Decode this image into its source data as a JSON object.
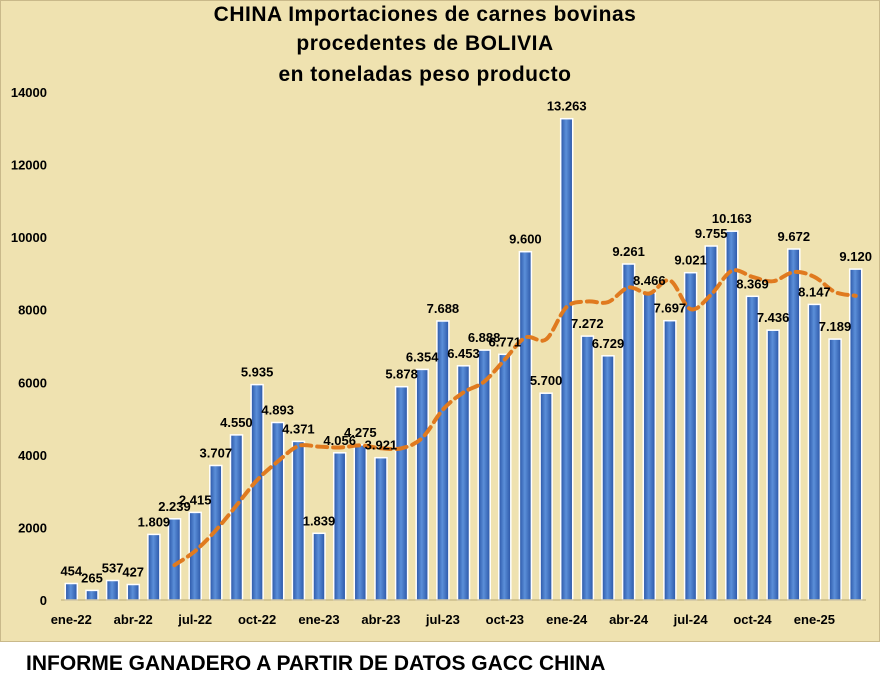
{
  "footer": "INFORME GANADERO A PARTIR DE DATOS GACC CHINA",
  "chart_data": {
    "type": "bar",
    "title_lines": [
      "CHINA Importaciones de carnes bovinas",
      "procedentes de BOLIVIA",
      "en toneladas peso producto"
    ],
    "months": [
      "ene-22",
      "feb-22",
      "mar-22",
      "abr-22",
      "may-22",
      "jun-22",
      "jul-22",
      "ago-22",
      "sep-22",
      "oct-22",
      "nov-22",
      "dic-22",
      "ene-23",
      "feb-23",
      "mar-23",
      "abr-23",
      "may-23",
      "jun-23",
      "jul-23",
      "ago-23",
      "sep-23",
      "oct-23",
      "nov-23",
      "dic-23",
      "ene-24",
      "feb-24",
      "mar-24",
      "abr-24",
      "may-24",
      "jun-24",
      "jul-24",
      "ago-24",
      "sep-24",
      "oct-24",
      "nov-24",
      "dic-24",
      "ene-25",
      "feb-25",
      "mar-25"
    ],
    "x_tick_labels": [
      "ene-22",
      "abr-22",
      "jul-22",
      "oct-22",
      "ene-23",
      "abr-23",
      "jul-23",
      "oct-23",
      "ene-24",
      "abr-24",
      "jul-24",
      "oct-24",
      "ene-25"
    ],
    "values": [
      454,
      265,
      537,
      427,
      1809,
      2239,
      2415,
      3707,
      4550,
      5935,
      4893,
      4371,
      1839,
      4056,
      4275,
      3921,
      5878,
      6354,
      7688,
      6453,
      6888,
      6771,
      9600,
      5700,
      13263,
      7272,
      6729,
      9261,
      8466,
      7697,
      9021,
      9755,
      10163,
      8369,
      7436,
      9672,
      8147,
      7189,
      9120
    ],
    "labels": [
      "454",
      "265",
      "537",
      "427",
      "1.809",
      "2.239",
      "2.415",
      "3.707",
      "4.550",
      "5.935",
      "4.893",
      "4.371",
      "1.839",
      "4.056",
      "4.275",
      "3.921",
      "5.878",
      "6.354",
      "7.688",
      "6.453",
      "6.888",
      "6.771",
      "9.600",
      "5.700",
      "13.263",
      "7.272",
      "6.729",
      "9.261",
      "8.466",
      "7.697",
      "9.021",
      "9.755",
      "10.163",
      "8.369",
      "7.436",
      "9.672",
      "8.147",
      "7.189",
      "9.120"
    ],
    "trend": [
      null,
      null,
      null,
      null,
      null,
      962,
      1350,
      1921,
      2604,
      3304,
      3816,
      4243,
      4227,
      4204,
      4260,
      4184,
      4181,
      4467,
      5248,
      5720,
      6016,
      6629,
      7233,
      7185,
      8077,
      8227,
      8210,
      8613,
      8447,
      8807,
      8016,
      8418,
      9073,
      8903,
      8785,
      9038,
      8905,
      8489,
      8384
    ],
    "trend_style": "dashed orange",
    "y_ticks": [
      0,
      2000,
      4000,
      6000,
      8000,
      10000,
      12000,
      14000
    ],
    "ylim": [
      0,
      14000
    ],
    "colors": {
      "bar": "#3366bb",
      "trend": "#e07a1f",
      "background": "#efe2b0"
    },
    "grid": false,
    "legend": "none"
  }
}
